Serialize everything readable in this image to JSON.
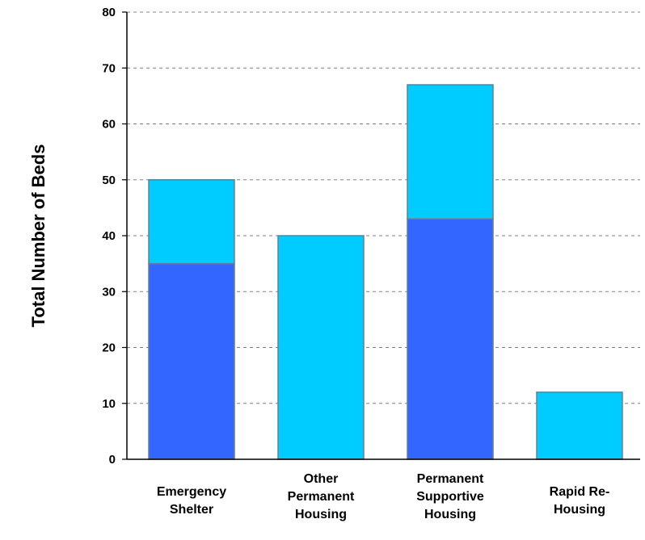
{
  "chart_data": {
    "type": "bar",
    "stacked": true,
    "title": "",
    "xlabel": "",
    "ylabel": "Total Number of Beds",
    "ylim": [
      0,
      80
    ],
    "yticks": [
      0,
      10,
      20,
      30,
      40,
      50,
      60,
      70,
      80
    ],
    "grid": "horizontal dashed",
    "legend": "none",
    "categories": [
      [
        "Emergency",
        "Shelter"
      ],
      [
        "Other",
        "Permanent",
        "Housing"
      ],
      [
        "Permanent",
        "Supportive",
        "Housing"
      ],
      [
        "Rapid Re-",
        "Housing"
      ]
    ],
    "series": [
      {
        "values": [
          35,
          0,
          43,
          0
        ],
        "color": "#3366FF"
      },
      {
        "values": [
          15,
          40,
          24,
          12
        ],
        "color": "#00CCFF"
      }
    ]
  }
}
